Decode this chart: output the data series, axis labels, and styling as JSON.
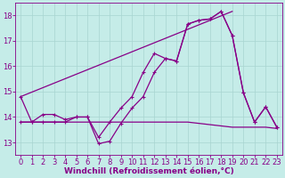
{
  "background_color": "#c5ece8",
  "grid_color": "#a8d4d0",
  "line_color": "#880088",
  "marker_color": "#880088",
  "xlabel": "Windchill (Refroidissement éolien,°C)",
  "xlabel_color": "#880088",
  "tick_color": "#880088",
  "xlim": [
    -0.5,
    23.5
  ],
  "ylim": [
    12.5,
    18.5
  ],
  "yticks": [
    13,
    14,
    15,
    16,
    17,
    18
  ],
  "xticks": [
    0,
    1,
    2,
    3,
    4,
    5,
    6,
    7,
    8,
    9,
    10,
    11,
    12,
    13,
    14,
    15,
    16,
    17,
    18,
    19,
    20,
    21,
    22,
    23
  ],
  "line1_x": [
    0,
    1,
    2,
    3,
    4,
    5,
    6,
    7,
    8,
    9,
    10,
    11,
    12,
    13,
    14,
    15,
    16,
    17,
    18,
    19,
    20,
    21,
    22,
    23
  ],
  "line1_y": [
    14.8,
    13.8,
    14.1,
    14.1,
    13.9,
    14.0,
    14.0,
    13.2,
    13.8,
    14.35,
    14.8,
    15.75,
    16.5,
    16.3,
    16.2,
    17.65,
    17.8,
    17.85,
    18.15,
    17.2,
    14.95,
    13.8,
    14.4,
    13.6
  ],
  "line2_x": [
    0,
    1,
    2,
    3,
    4,
    5,
    6,
    7,
    8,
    9,
    10,
    11,
    12,
    13,
    14,
    15,
    16,
    17,
    18,
    19,
    20,
    21,
    22,
    23
  ],
  "line2_y": [
    13.8,
    13.8,
    13.8,
    13.8,
    13.8,
    14.0,
    14.0,
    12.95,
    13.05,
    13.75,
    14.35,
    14.8,
    15.75,
    16.3,
    16.2,
    17.65,
    17.8,
    17.85,
    18.15,
    17.2,
    14.95,
    13.8,
    14.4,
    13.6
  ],
  "line3_x": [
    0,
    1,
    2,
    3,
    4,
    5,
    6,
    7,
    8,
    9,
    10,
    11,
    12,
    13,
    14,
    15,
    16,
    17,
    18,
    19,
    20,
    21,
    22,
    23
  ],
  "line3_y": [
    13.8,
    13.8,
    13.8,
    13.8,
    13.8,
    13.8,
    13.8,
    13.8,
    13.8,
    13.8,
    13.8,
    13.8,
    13.8,
    13.8,
    13.8,
    13.8,
    13.75,
    13.7,
    13.65,
    13.6,
    13.6,
    13.6,
    13.6,
    13.55
  ],
  "line4_x": [
    0,
    19
  ],
  "line4_y": [
    14.8,
    18.15
  ],
  "fontsize_xlabel": 6.5,
  "fontsize_ticks": 6
}
